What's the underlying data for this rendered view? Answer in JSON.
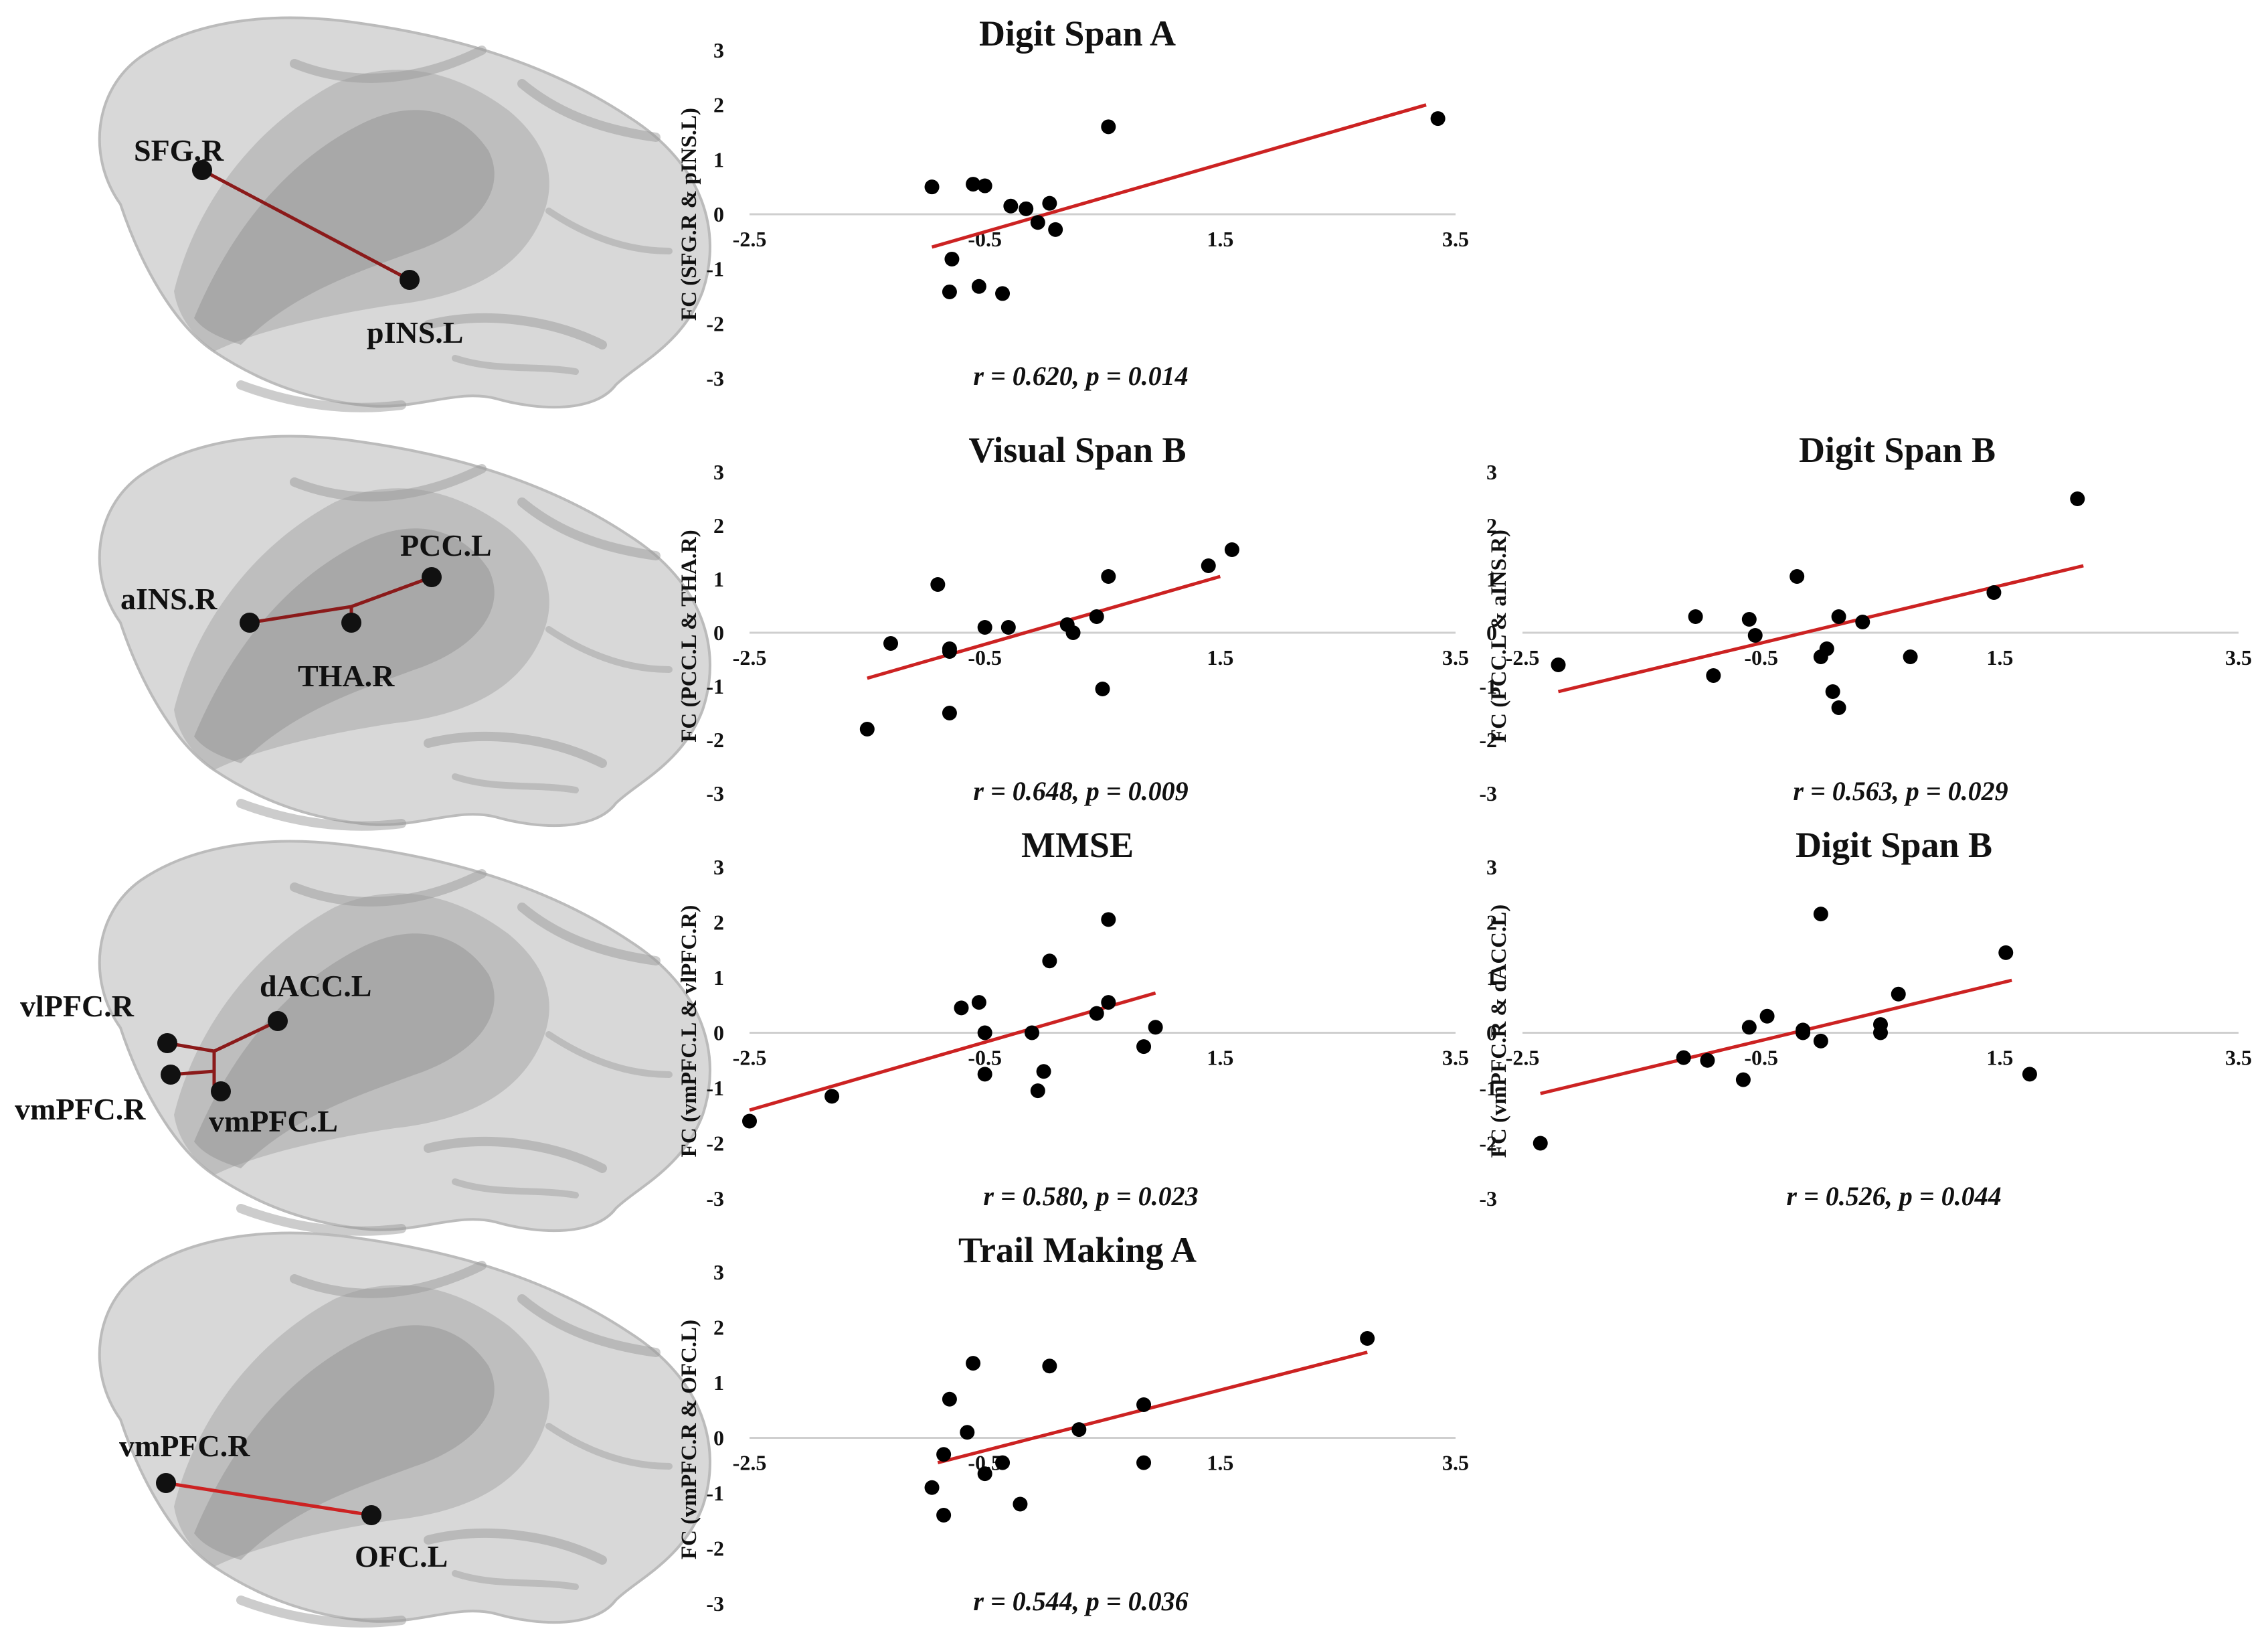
{
  "figure": {
    "brains": [
      {
        "labels": [
          "SFG.R",
          "pINS.L"
        ]
      },
      {
        "labels": [
          "PCC.L",
          "aINS.R",
          "THA.R"
        ]
      },
      {
        "labels": [
          "vlPFC.R",
          "dACC.L",
          "vmPFC.R",
          "vmPFC.L"
        ]
      },
      {
        "labels": [
          "vmPFC.R",
          "OFC.L"
        ]
      }
    ]
  },
  "colors": {
    "regression_line": "#cc2222",
    "points": "#000000",
    "brain_fill": "#d6d6d6",
    "brain_shade": "#8e8e8e",
    "connection": "#8b1a1a"
  },
  "chart_data": [
    {
      "type": "scatter",
      "title": "Digit Span A",
      "ylabel": "FC (SFG.R & pINS.L)",
      "xlim": [
        -2.5,
        3.5
      ],
      "ylim": [
        -3,
        3
      ],
      "xticks": [
        "-2.5",
        "-0.5",
        "1.5",
        "3.5"
      ],
      "yticks": [
        "3",
        "2",
        "1",
        "0",
        "-1",
        "-2",
        "-3"
      ],
      "points": [
        [
          -0.95,
          0.5
        ],
        [
          -0.6,
          0.55
        ],
        [
          -0.5,
          0.52
        ],
        [
          -0.28,
          0.15
        ],
        [
          -0.15,
          0.1
        ],
        [
          0.05,
          0.2
        ],
        [
          -0.05,
          -0.15
        ],
        [
          0.1,
          -0.28
        ],
        [
          -0.78,
          -0.82
        ],
        [
          -0.8,
          -1.42
        ],
        [
          -0.55,
          -1.32
        ],
        [
          -0.35,
          -1.45
        ],
        [
          0.55,
          1.6
        ],
        [
          3.35,
          1.75
        ]
      ],
      "fit": [
        [
          -0.95,
          -0.6
        ],
        [
          3.25,
          2.0
        ]
      ],
      "stat": "r = 0.620,  p = 0.014"
    },
    {
      "type": "scatter",
      "title": "Visual Span B",
      "ylabel": "FC (PCC.L & THA.R)",
      "xlim": [
        -2.5,
        3.5
      ],
      "ylim": [
        -3,
        3
      ],
      "xticks": [
        "-2.5",
        "-0.5",
        "1.5",
        "3.5"
      ],
      "yticks": [
        "3",
        "2",
        "1",
        "0",
        "-1",
        "-2",
        "-3"
      ],
      "points": [
        [
          -1.5,
          -1.8
        ],
        [
          -1.3,
          -0.2
        ],
        [
          -0.9,
          0.9
        ],
        [
          -0.8,
          -0.3
        ],
        [
          -0.8,
          -0.35
        ],
        [
          -0.8,
          -1.5
        ],
        [
          -0.3,
          0.1
        ],
        [
          -0.5,
          0.1
        ],
        [
          0.2,
          0.15
        ],
        [
          0.25,
          0
        ],
        [
          0.45,
          0.3
        ],
        [
          0.55,
          1.05
        ],
        [
          0.5,
          -1.05
        ],
        [
          1.4,
          1.25
        ],
        [
          1.6,
          1.55
        ]
      ],
      "fit": [
        [
          -1.5,
          -0.85
        ],
        [
          1.5,
          1.05
        ]
      ],
      "stat": "r = 0.648,  p = 0.009"
    },
    {
      "type": "scatter",
      "title": "Digit Span B",
      "ylabel": "FC (PCC.L & aINS.R)",
      "xlim": [
        -2.5,
        3.5
      ],
      "ylim": [
        -3,
        3
      ],
      "xticks": [
        "-2.5",
        "-0.5",
        "1.5",
        "3.5"
      ],
      "yticks": [
        "3",
        "2",
        "1",
        "0",
        "-1",
        "-2",
        "-3"
      ],
      "points": [
        [
          -2.2,
          -0.6
        ],
        [
          -1.05,
          0.3
        ],
        [
          -0.9,
          -0.8
        ],
        [
          -0.6,
          0.25
        ],
        [
          -0.55,
          -0.05
        ],
        [
          -0.2,
          1.05
        ],
        [
          0,
          -0.45
        ],
        [
          0.05,
          -0.3
        ],
        [
          0.1,
          -1.1
        ],
        [
          0.15,
          -1.4
        ],
        [
          0.15,
          0.3
        ],
        [
          0.35,
          0.2
        ],
        [
          0.75,
          -0.45
        ],
        [
          1.45,
          0.75
        ],
        [
          2.15,
          2.5
        ]
      ],
      "fit": [
        [
          -2.2,
          -1.1
        ],
        [
          2.2,
          1.25
        ]
      ],
      "stat": "r = 0.563,  p = 0.029"
    },
    {
      "type": "scatter",
      "title": "MMSE",
      "ylabel": "FC (vmPFC.L & vlPFC.R)",
      "xlim": [
        -2.5,
        3.5
      ],
      "ylim": [
        -3,
        3
      ],
      "xticks": [
        "-2.5",
        "-0.5",
        "1.5",
        "3.5"
      ],
      "yticks": [
        "3",
        "2",
        "1",
        "0",
        "-1",
        "-2",
        "-3"
      ],
      "points": [
        [
          -2.5,
          -1.6
        ],
        [
          -1.8,
          -1.15
        ],
        [
          -0.7,
          0.45
        ],
        [
          -0.55,
          0.55
        ],
        [
          -0.5,
          0
        ],
        [
          -0.5,
          -0.75
        ],
        [
          -0.1,
          0
        ],
        [
          -0.05,
          -1.05
        ],
        [
          0,
          -0.7
        ],
        [
          0.05,
          1.3
        ],
        [
          0.45,
          0.35
        ],
        [
          0.55,
          2.05
        ],
        [
          0.55,
          0.55
        ],
        [
          0.85,
          -0.25
        ],
        [
          0.95,
          0.1
        ]
      ],
      "fit": [
        [
          -2.5,
          -1.4
        ],
        [
          0.95,
          0.72
        ]
      ],
      "stat": "r = 0.580,  p = 0.023"
    },
    {
      "type": "scatter",
      "title": "Digit Span B",
      "ylabel": "FC (vmPFC.R & dACC.L)",
      "xlim": [
        -2.5,
        3.5
      ],
      "ylim": [
        -3,
        3
      ],
      "xticks": [
        "-2.5",
        "-0.5",
        "1.5",
        "3.5"
      ],
      "yticks": [
        "3",
        "2",
        "1",
        "0",
        "-1",
        "-2",
        "-3"
      ],
      "points": [
        [
          -2.35,
          -2.0
        ],
        [
          -1.15,
          -0.45
        ],
        [
          -0.95,
          -0.5
        ],
        [
          -0.65,
          -0.85
        ],
        [
          -0.6,
          0.1
        ],
        [
          -0.45,
          0.3
        ],
        [
          -0.15,
          0
        ],
        [
          -0.15,
          0.05
        ],
        [
          0,
          -0.15
        ],
        [
          0,
          2.15
        ],
        [
          0.5,
          0.15
        ],
        [
          0.5,
          0
        ],
        [
          0.65,
          0.7
        ],
        [
          1.55,
          1.45
        ],
        [
          1.75,
          -0.75
        ]
      ],
      "fit": [
        [
          -2.35,
          -1.1
        ],
        [
          1.6,
          0.95
        ]
      ],
      "stat": "r = 0.526,  p = 0.044"
    },
    {
      "type": "scatter",
      "title": "Trail Making A",
      "ylabel": "FC (vmPFC.R & OFC.L)",
      "xlim": [
        -2.5,
        3.5
      ],
      "ylim": [
        -3,
        3
      ],
      "xticks": [
        "-2.5",
        "-0.5",
        "1.5",
        "3.5"
      ],
      "yticks": [
        "3",
        "2",
        "1",
        "0",
        "-1",
        "-2",
        "-3"
      ],
      "points": [
        [
          -0.95,
          -0.9
        ],
        [
          -0.85,
          -0.3
        ],
        [
          -0.8,
          0.7
        ],
        [
          -0.85,
          -1.4
        ],
        [
          -0.65,
          0.1
        ],
        [
          -0.6,
          1.35
        ],
        [
          -0.5,
          -0.65
        ],
        [
          -0.35,
          -0.45
        ],
        [
          -0.2,
          -1.2
        ],
        [
          0.05,
          1.3
        ],
        [
          0.3,
          0.15
        ],
        [
          0.85,
          0.6
        ],
        [
          0.85,
          -0.45
        ],
        [
          2.75,
          1.8
        ]
      ],
      "fit": [
        [
          -0.9,
          -0.45
        ],
        [
          2.75,
          1.55
        ]
      ],
      "stat": "r = 0.544,  p = 0.036"
    }
  ]
}
